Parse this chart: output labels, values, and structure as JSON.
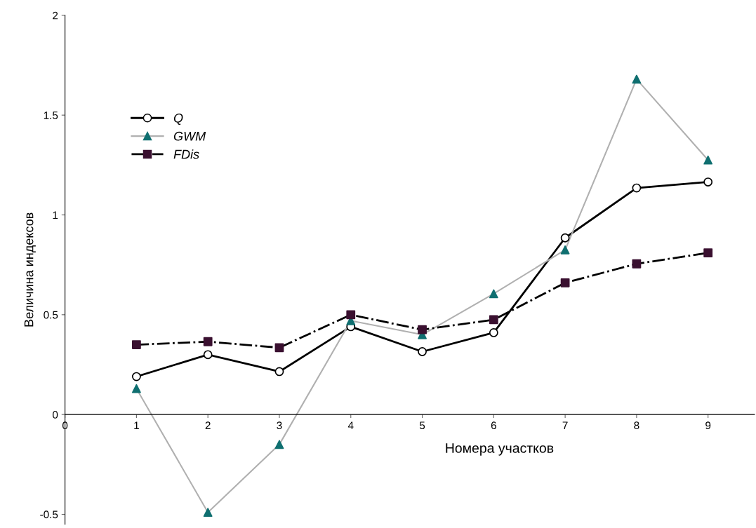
{
  "chart_data": {
    "type": "line",
    "xlabel": "Номера участков",
    "ylabel": "Величина индексов",
    "x": [
      1,
      2,
      3,
      4,
      5,
      6,
      7,
      8,
      9
    ],
    "xlim": [
      0,
      9.65
    ],
    "xticks": [
      0,
      1,
      2,
      3,
      4,
      5,
      6,
      7,
      8,
      9
    ],
    "ylim": [
      -0.55,
      2
    ],
    "yticks": [
      -0.5,
      0,
      0.5,
      1,
      1.5,
      2
    ],
    "grid": false,
    "legend": "top left",
    "series": [
      {
        "name": "Q",
        "color": "#000000",
        "marker": "circle",
        "colors": [
          "#ffffff",
          "#ffffff",
          "#ffffff",
          "#ffffff",
          "#ffffff",
          "#ffffff",
          "#ffffff",
          "#ffffff",
          "#ffffff"
        ],
        "line_style": "solid",
        "values": [
          0.19,
          0.3,
          0.215,
          0.44,
          0.315,
          0.41,
          0.885,
          1.135,
          1.165
        ]
      },
      {
        "name": "GWM",
        "color": "#b0b0b0",
        "marker": "triangle",
        "colors": [
          "#0f6f70",
          "#0f6f70",
          "#0f6f70",
          "#0f6f70",
          "#0f6f70",
          "#0f6f70",
          "#0f6f70",
          "#0f6f70",
          "#0f6f70"
        ],
        "line_style": "solid",
        "values": [
          0.13,
          -0.49,
          -0.15,
          0.47,
          0.4,
          0.605,
          0.825,
          1.68,
          1.275
        ]
      },
      {
        "name": "FDis",
        "color": "#000000",
        "marker": "square",
        "colors": [
          "#3a1030",
          "#3a1030",
          "#3a1030",
          "#3a1030",
          "#3a1030",
          "#3a1030",
          "#3a1030",
          "#3a1030",
          "#3a1030"
        ],
        "line_style": "dashdot",
        "values": [
          0.35,
          0.365,
          0.335,
          0.5,
          0.425,
          0.475,
          0.66,
          0.755,
          0.81
        ]
      }
    ]
  }
}
